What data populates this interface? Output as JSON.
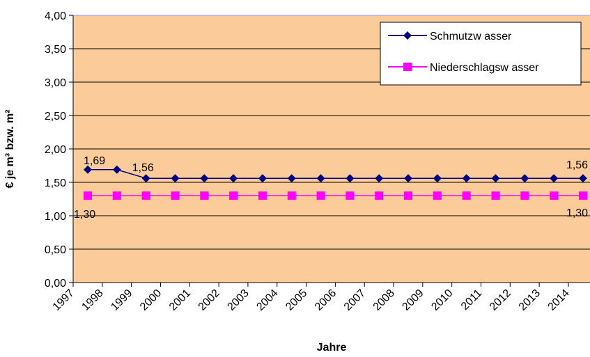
{
  "chart_data": {
    "type": "line",
    "title": "",
    "xlabel": "Jahre",
    "ylabel": "€ je m³ bzw. m²",
    "ylim": [
      0,
      4
    ],
    "yticks": [
      "0,00",
      "0,50",
      "1,00",
      "1,50",
      "2,00",
      "2,50",
      "3,00",
      "3,50",
      "4,00"
    ],
    "categories": [
      "1997",
      "1998",
      "1999",
      "2000",
      "2001",
      "2002",
      "2003",
      "2004",
      "2005",
      "2006",
      "2007",
      "2008",
      "2009",
      "2010",
      "2011",
      "2012",
      "2013",
      "2014"
    ],
    "series": [
      {
        "name": "Schmutzw asser",
        "color": "#000080",
        "marker": "diamond",
        "values": [
          1.69,
          1.69,
          1.56,
          1.56,
          1.56,
          1.56,
          1.56,
          1.56,
          1.56,
          1.56,
          1.56,
          1.56,
          1.56,
          1.56,
          1.56,
          1.56,
          1.56,
          1.56
        ]
      },
      {
        "name": "Niederschlagsw asser",
        "color": "#FF00FF",
        "marker": "square",
        "values": [
          1.3,
          1.3,
          1.3,
          1.3,
          1.3,
          1.3,
          1.3,
          1.3,
          1.3,
          1.3,
          1.3,
          1.3,
          1.3,
          1.3,
          1.3,
          1.3,
          1.3,
          1.3
        ]
      }
    ],
    "data_labels": [
      {
        "text": "1,69"
      },
      {
        "text": "1,56"
      },
      {
        "text": "1,56"
      },
      {
        "text": "1,30"
      },
      {
        "text": "1,30"
      }
    ],
    "grid": true,
    "legend_position": "top-right",
    "plot_background": "#FBCC99"
  }
}
